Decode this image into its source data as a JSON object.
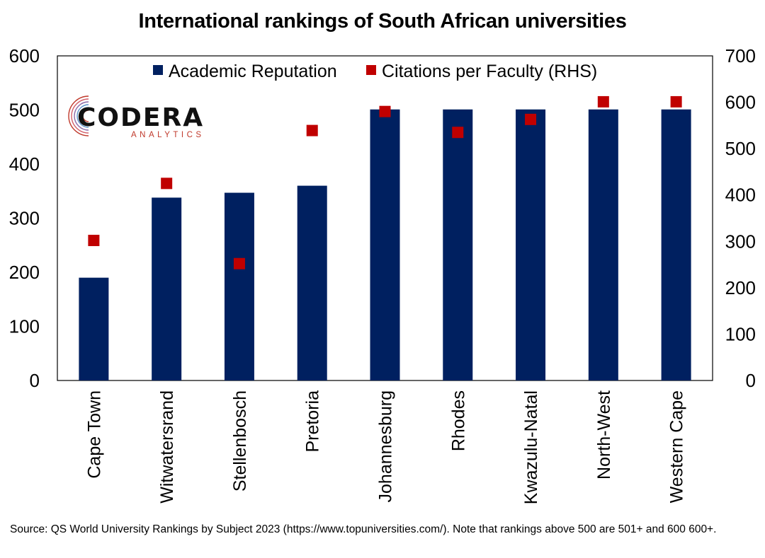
{
  "title": "International rankings of South African universities",
  "source": "Source: QS World University Rankings by Subject 2023 (https://www.topuniversities.com/). Note that rankings above 500 are 501+ and 600 600+.",
  "logo": {
    "word": "CODERA",
    "sub": "ANALYTICS"
  },
  "chart_data": {
    "type": "bar",
    "title": "International rankings of South African universities",
    "categories": [
      "Cape Town",
      "Witwatersrand",
      "Stellenbosch",
      "Pretoria",
      "Johannesburg",
      "Rhodes",
      "Kwazulu-Natal",
      "North-West",
      "Western Cape"
    ],
    "series": [
      {
        "name": "Academic Reputation",
        "type": "bar",
        "axis": "left",
        "color": "#002060",
        "values": [
          190,
          338,
          347,
          360,
          501,
          501,
          501,
          501,
          501
        ]
      },
      {
        "name": "Citations per Faculty (RHS)",
        "type": "scatter",
        "axis": "right",
        "color": "#c00000",
        "values": [
          302,
          425,
          252,
          539,
          580,
          535,
          563,
          601,
          601
        ]
      }
    ],
    "ylim_left": [
      0,
      600
    ],
    "yticks_left": [
      0,
      100,
      200,
      300,
      400,
      500,
      600
    ],
    "ylim_right": [
      0,
      700
    ],
    "yticks_right": [
      0,
      100,
      200,
      300,
      400,
      500,
      600,
      700
    ],
    "legend": "top-center",
    "grid": false
  }
}
